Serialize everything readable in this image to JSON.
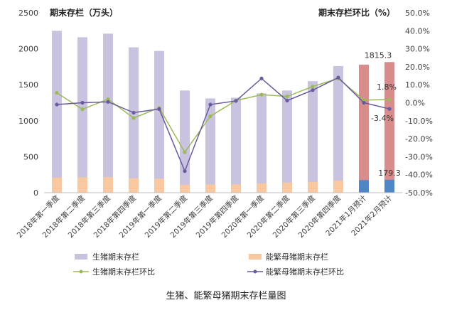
{
  "caption": "生猪、能繁母猪期末存栏量图",
  "chart_data": {
    "type": "bar",
    "left_axis_title": "期末存栏（万头）",
    "right_axis_title": "期末存栏环比（%）",
    "left_ylim": [
      0,
      2500
    ],
    "left_ticks": [
      0,
      500,
      1000,
      1500,
      2000,
      2500
    ],
    "right_ylim": [
      -50,
      50
    ],
    "right_ticks": [
      -50,
      -40,
      -30,
      -20,
      -10,
      0,
      10,
      20,
      30,
      40,
      50
    ],
    "right_tick_labels": [
      "-50.0%",
      "-40.0%",
      "-30.0%",
      "-20.0%",
      "-10.0%",
      "0.0%",
      "10.0%",
      "20.0%",
      "30.0%",
      "40.0%",
      "50.0%"
    ],
    "categories": [
      "2018年第一季度",
      "2018年第二季度",
      "2018年第三季度",
      "2018年第四季度",
      "2019年第一季度",
      "2019年第二季度",
      "2019年第三季度",
      "2019年第四季度",
      "2020年第一季度",
      "2020年第二季度",
      "2020年第三季度",
      "2020年第四季度",
      "2021年1月预计",
      "2021年2月预计"
    ],
    "series": [
      {
        "name": "生猪期末存栏",
        "kind": "bar",
        "axis": "left",
        "color": "#c9c3e0",
        "forecast_color": "#d98c8c",
        "values": [
          2250,
          2160,
          2210,
          2020,
          1970,
          1420,
          1310,
          1320,
          1380,
          1420,
          1550,
          1760,
          1780,
          1815.3
        ]
      },
      {
        "name": "能繁母猪期末存栏",
        "kind": "bar",
        "axis": "left",
        "color": "#f8c9a0",
        "forecast_color": "#4f86c6",
        "values": [
          210,
          215,
          215,
          200,
          195,
          110,
          115,
          115,
          130,
          140,
          150,
          170,
          175,
          179.3
        ]
      },
      {
        "name": "生猪期末存栏环比",
        "kind": "line",
        "axis": "right",
        "color": "#9bbb59",
        "values": [
          5.5,
          -3.6,
          2.0,
          -8.5,
          -2.8,
          -27.5,
          -7.5,
          1.2,
          4.5,
          3.5,
          9.0,
          13.5,
          1.5,
          1.8
        ]
      },
      {
        "name": "能繁母猪期末存栏环比",
        "kind": "line",
        "axis": "right",
        "color": "#6a5a9e",
        "values": [
          -1.0,
          0.0,
          0.5,
          -5.5,
          -3.5,
          -38.0,
          -1.0,
          1.0,
          13.5,
          1.2,
          7.0,
          14.0,
          0.0,
          -3.4
        ]
      }
    ],
    "data_labels": [
      {
        "text": "1815.3",
        "category_index": 13,
        "series": 0
      },
      {
        "text": "179.3",
        "category_index": 13,
        "series": 1
      },
      {
        "text": "1.8%",
        "category_index": 13,
        "series": 2
      },
      {
        "text": "-3.4%",
        "category_index": 13,
        "series": 3
      }
    ],
    "forecast_start_index": 12,
    "legend_position": "bottom",
    "grid": false
  }
}
